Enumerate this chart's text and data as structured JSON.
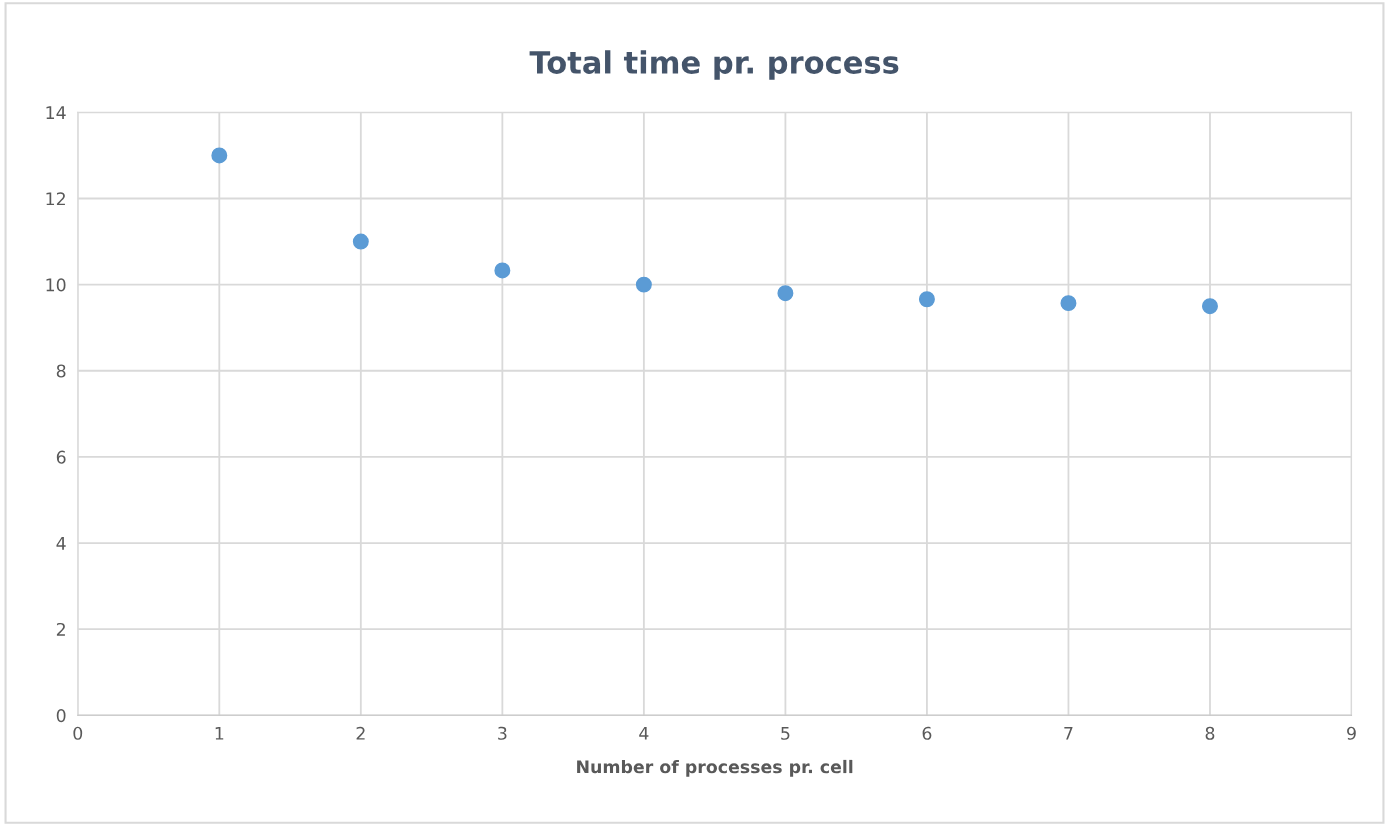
{
  "chart_data": {
    "type": "scatter",
    "title": "Total time pr. process",
    "xlabel": "Number of processes pr. cell",
    "x": [
      1,
      2,
      3,
      4,
      5,
      6,
      7,
      8
    ],
    "series": [
      {
        "color": "#5b9bd5",
        "values": [
          13.0,
          11.0,
          10.33,
          10.0,
          9.8,
          9.66,
          9.57,
          9.5
        ]
      }
    ],
    "xlim": [
      0,
      9
    ],
    "xticks": [
      0,
      1,
      2,
      3,
      4,
      5,
      6,
      7,
      8,
      9
    ],
    "ylim": [
      0,
      14
    ],
    "yticks": [
      0,
      2,
      4,
      6,
      8,
      10,
      12,
      14
    ],
    "grid": true,
    "marker": "circle"
  }
}
